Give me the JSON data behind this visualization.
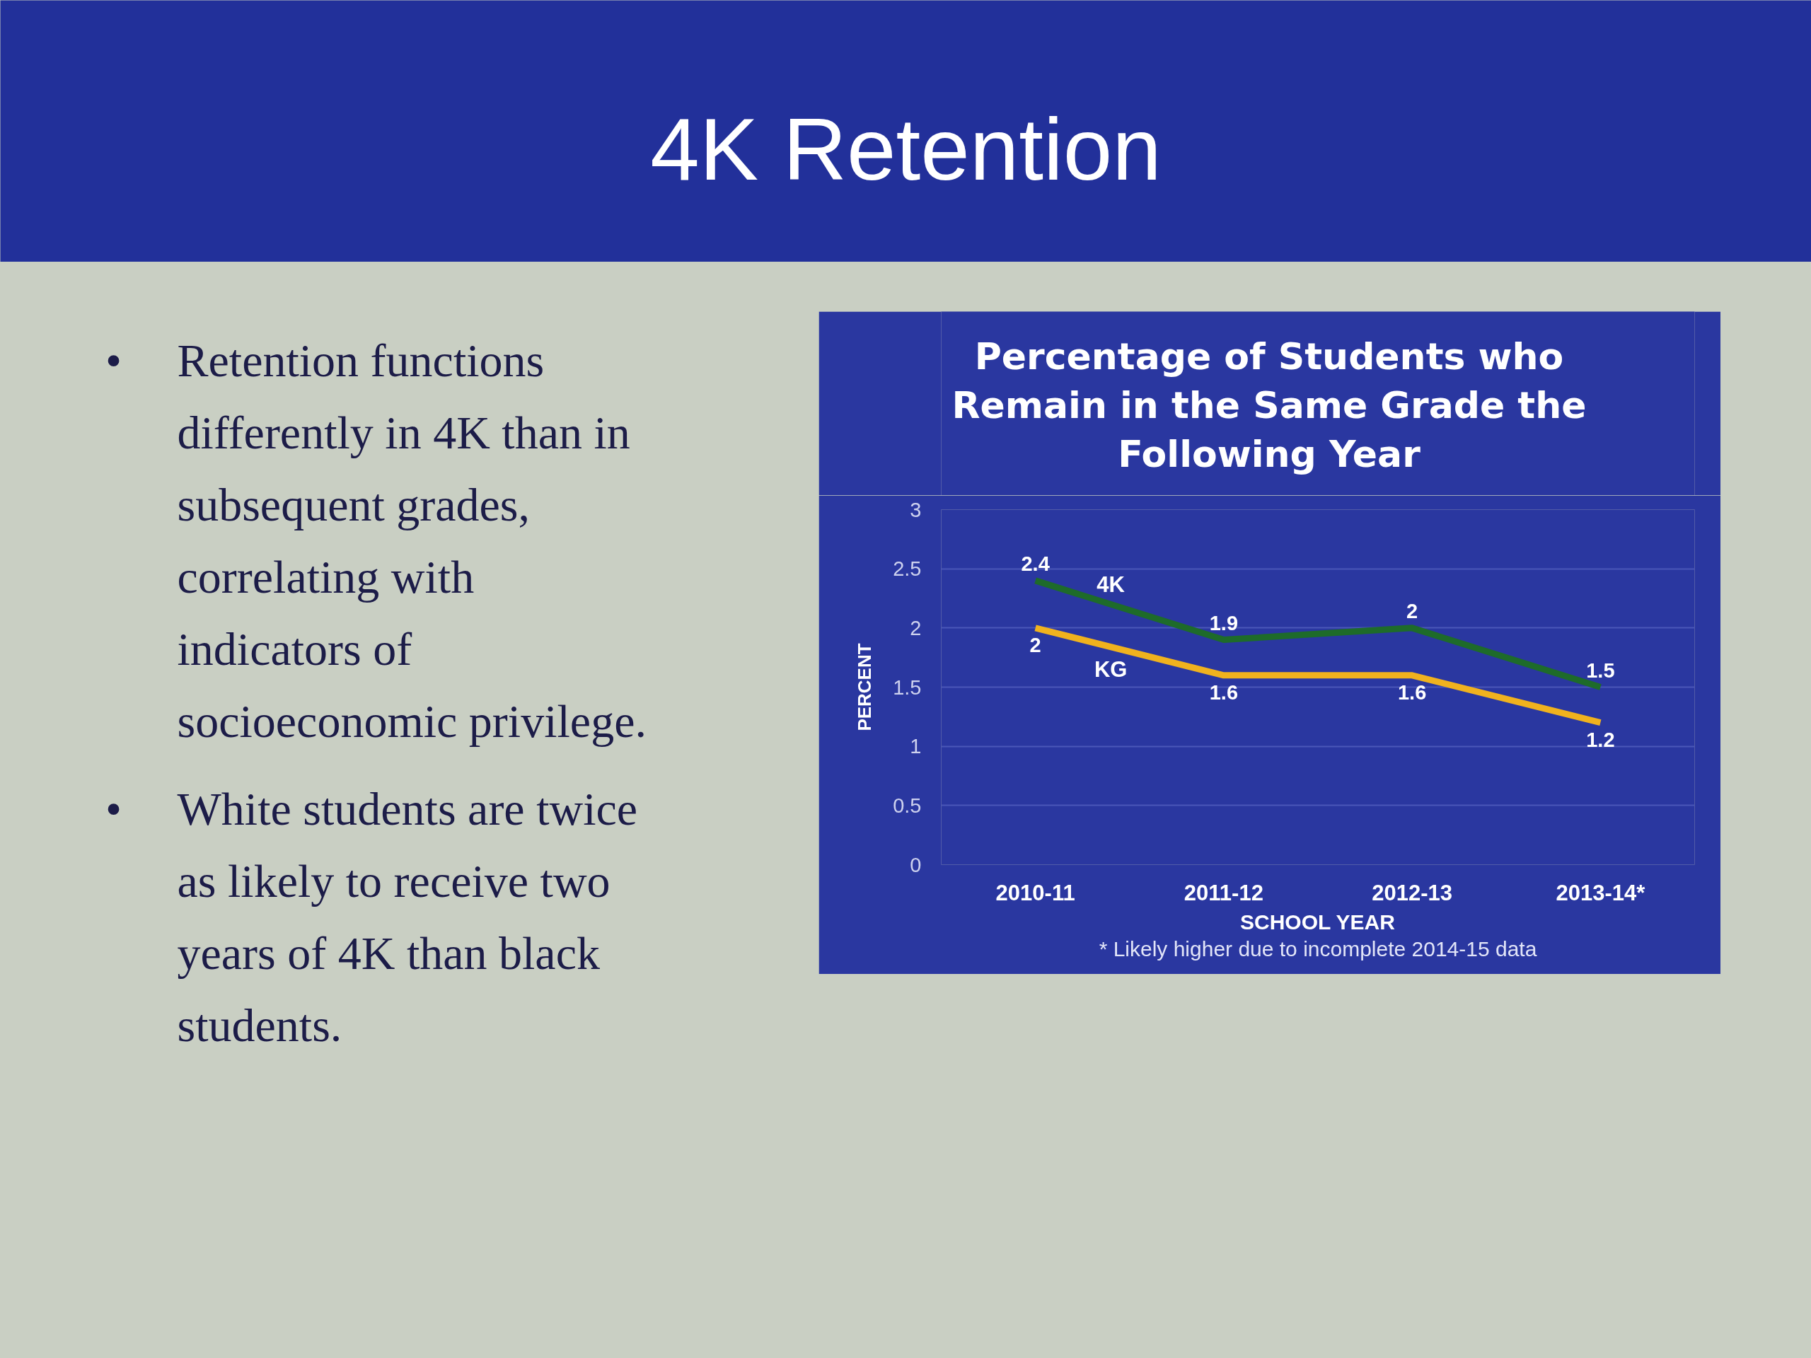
{
  "chart_data": [
    {
      "type": "other",
      "title": "4K Retention",
      "annotations": [
        "• Retention functions differently in 4K than in subsequent grades, correlating with indicators of socioeconomic privilege.",
        "• White students are twice as likely to receive two years of 4K than black students."
      ]
    },
    {
      "type": "line",
      "title": "Percentage of Students who Remain in the Same Grade the Following Year",
      "categories": [
        "2010-11",
        "2011-12",
        "2012-13",
        "2013-14*"
      ],
      "series": [
        {
          "name": "4K",
          "color": "#1e6b2a",
          "values": [
            2.4,
            1.9,
            2,
            1.5
          ]
        },
        {
          "name": "KG",
          "color": "#f0b21e",
          "values": [
            2,
            1.6,
            1.6,
            1.2
          ]
        }
      ],
      "ylim": [
        0,
        3
      ],
      "yticks": [
        0,
        0.5,
        1,
        1.5,
        2,
        2.5,
        3
      ],
      "grid": "y",
      "xlabel": "SCHOOL YEAR",
      "ylabel": "PERCENT",
      "annotations": [
        "* Likely higher due to incomplete 2014-15 data"
      ],
      "data_labels": true,
      "line_style": "solid"
    }
  ]
}
